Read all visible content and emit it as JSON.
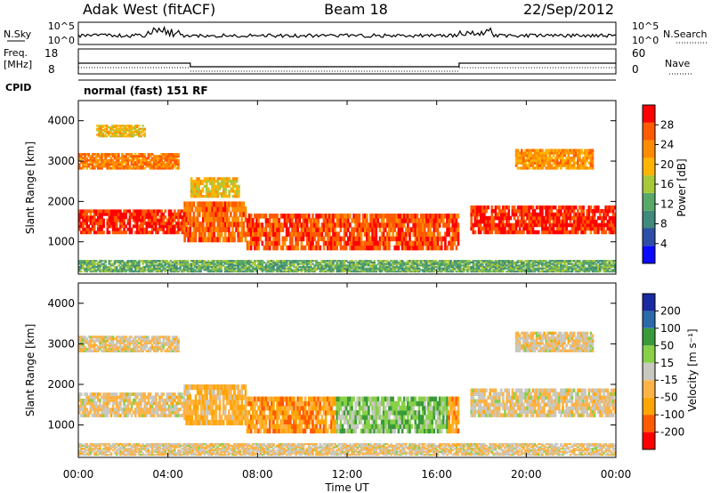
{
  "header": {
    "station": "Adak West (fitACF)",
    "beam": "Beam 18",
    "date": "22/Sep/2012"
  },
  "param_panels": {
    "nsky_label": "N.Sky",
    "nsky_ticks": [
      "10^5",
      "10^0"
    ],
    "nsearch_label": "N.Search",
    "nsearch_ticks": [
      "10^5",
      "10^0"
    ],
    "freq_label": "Freq.",
    "freq_unit": "[MHz]",
    "freq_ticks": [
      "18",
      "8"
    ],
    "nave_label": "Nave",
    "nave_ticks": [
      "60",
      "0"
    ],
    "cpid_label": "CPID",
    "cpid_value": "normal (fast) 151 RF"
  },
  "colors": {
    "power_scale": [
      "#0a0aff",
      "#2d4fa8",
      "#3f8a7a",
      "#58a86a",
      "#a8c83a",
      "#ffb400",
      "#ff8c00",
      "#ff5a00",
      "#ff0000"
    ],
    "velocity_scale": [
      "#ff0000",
      "#ff5a00",
      "#ffa500",
      "#ffb347",
      "#c8c8c0",
      "#88d048",
      "#3a9a3a",
      "#2a6aa8",
      "#1a2aa0"
    ]
  },
  "chart_data": [
    {
      "type": "heatmap",
      "name": "power",
      "xlabel": "",
      "ylabel": "Slant Range [km]",
      "ylim": [
        200,
        4500
      ],
      "y_ticks": [
        "1000",
        "2000",
        "3000",
        "4000"
      ],
      "x_range_hours": [
        0,
        24
      ],
      "colorbar": {
        "label": "Power [dB]",
        "range": [
          0,
          32
        ],
        "ticks": [
          "4",
          "8",
          "12",
          "16",
          "20",
          "24",
          "28"
        ]
      },
      "regions": [
        {
          "t": [
            0,
            5
          ],
          "r": [
            1200,
            1800
          ],
          "level": 0.9
        },
        {
          "t": [
            0,
            4.5
          ],
          "r": [
            2800,
            3200
          ],
          "level": 0.75
        },
        {
          "t": [
            0.8,
            3.0
          ],
          "r": [
            3600,
            3900
          ],
          "level": 0.6
        },
        {
          "t": [
            4.7,
            7.5
          ],
          "r": [
            1000,
            2000
          ],
          "level": 0.8
        },
        {
          "t": [
            5.0,
            7.2
          ],
          "r": [
            2100,
            2600
          ],
          "level": 0.6
        },
        {
          "t": [
            7.5,
            17.0
          ],
          "r": [
            800,
            1700
          ],
          "level": 0.85
        },
        {
          "t": [
            17.5,
            24
          ],
          "r": [
            1200,
            1900
          ],
          "level": 0.9
        },
        {
          "t": [
            19.5,
            23.0
          ],
          "r": [
            2800,
            3300
          ],
          "level": 0.7
        },
        {
          "t": [
            0,
            24
          ],
          "r": [
            250,
            550
          ],
          "level": 0.4
        }
      ]
    },
    {
      "type": "heatmap",
      "name": "velocity",
      "xlabel": "Time UT",
      "ylabel": "Slant Range [km]",
      "ylim": [
        200,
        4500
      ],
      "y_ticks": [
        "1000",
        "2000",
        "3000",
        "4000"
      ],
      "x_ticks": [
        "00:00",
        "04:00",
        "08:00",
        "12:00",
        "16:00",
        "20:00",
        "00:00"
      ],
      "x_range_hours": [
        0,
        24
      ],
      "colorbar": {
        "label": "Velocity [m s⁻¹]",
        "range": [
          -250,
          250
        ],
        "ticks": [
          "200",
          "100",
          "50",
          "15",
          "-15",
          "-50",
          "-100",
          "-200"
        ]
      },
      "regions": [
        {
          "t": [
            0,
            5
          ],
          "r": [
            1200,
            1800
          ],
          "level": 0.45
        },
        {
          "t": [
            0,
            4.5
          ],
          "r": [
            2800,
            3200
          ],
          "level": 0.45
        },
        {
          "t": [
            4.7,
            7.5
          ],
          "r": [
            1000,
            2000
          ],
          "level": 0.35
        },
        {
          "t": [
            7.5,
            11.5
          ],
          "r": [
            800,
            1700
          ],
          "level": 0.28
        },
        {
          "t": [
            11.5,
            16.5
          ],
          "r": [
            800,
            1700
          ],
          "level": 0.62
        },
        {
          "t": [
            16.5,
            17.0
          ],
          "r": [
            800,
            1700
          ],
          "level": 0.3
        },
        {
          "t": [
            17.5,
            24
          ],
          "r": [
            1200,
            1900
          ],
          "level": 0.45
        },
        {
          "t": [
            19.5,
            23.0
          ],
          "r": [
            2800,
            3300
          ],
          "level": 0.45
        },
        {
          "t": [
            0,
            24
          ],
          "r": [
            250,
            550
          ],
          "level": 0.45
        }
      ]
    }
  ],
  "freq_series": {
    "segments_hours": [
      [
        0,
        5
      ],
      [
        5,
        17
      ],
      [
        17,
        24
      ]
    ],
    "freq_mhz": [
      12,
      10,
      12
    ]
  }
}
